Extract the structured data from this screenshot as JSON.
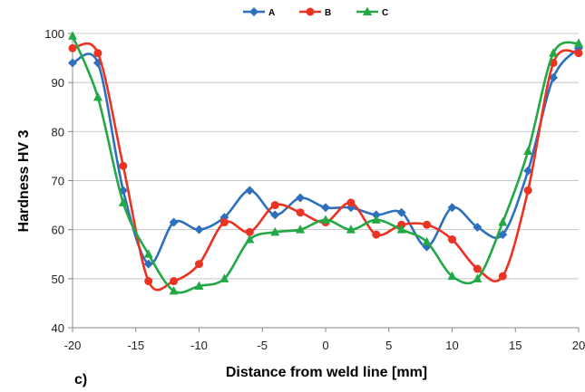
{
  "panel_label": "c)",
  "chart_data": {
    "type": "line",
    "title": "",
    "xlabel": "Distance from weld line [mm]",
    "ylabel": "Hardness HV 3",
    "xlim": [
      -20,
      20
    ],
    "ylim": [
      40,
      100
    ],
    "xticks": [
      -20,
      -15,
      -10,
      -5,
      0,
      5,
      10,
      15,
      20
    ],
    "yticks": [
      40,
      50,
      60,
      70,
      80,
      90,
      100
    ],
    "grid": "horizontal",
    "legend": "top-center",
    "x": [
      -20,
      -18,
      -16,
      -14,
      -12,
      -10,
      -8,
      -6,
      -4,
      -2,
      0,
      2,
      4,
      6,
      8,
      10,
      12,
      14,
      16,
      18,
      20
    ],
    "series": [
      {
        "name": "A",
        "color": "#2e6fbe",
        "marker": "diamond",
        "values": [
          94,
          94,
          68,
          53,
          61.5,
          60,
          62.5,
          68,
          63,
          66.5,
          64.5,
          64.5,
          63,
          63.5,
          56.5,
          64.5,
          60.5,
          59,
          72,
          91,
          97
        ]
      },
      {
        "name": "B",
        "color": "#ea3323",
        "marker": "circle",
        "values": [
          97,
          96,
          73,
          49.5,
          49.5,
          53,
          61.5,
          59.5,
          65,
          63.5,
          61.5,
          65.5,
          59,
          61,
          61,
          58,
          52,
          50.5,
          68,
          94,
          96
        ]
      },
      {
        "name": "C",
        "color": "#22a844",
        "marker": "triangle",
        "values": [
          99.5,
          87,
          65.5,
          55,
          47.5,
          48.5,
          50,
          58,
          59.5,
          60,
          62,
          60,
          62,
          60,
          57.5,
          50.5,
          50,
          61.5,
          76,
          96,
          98
        ]
      }
    ]
  }
}
